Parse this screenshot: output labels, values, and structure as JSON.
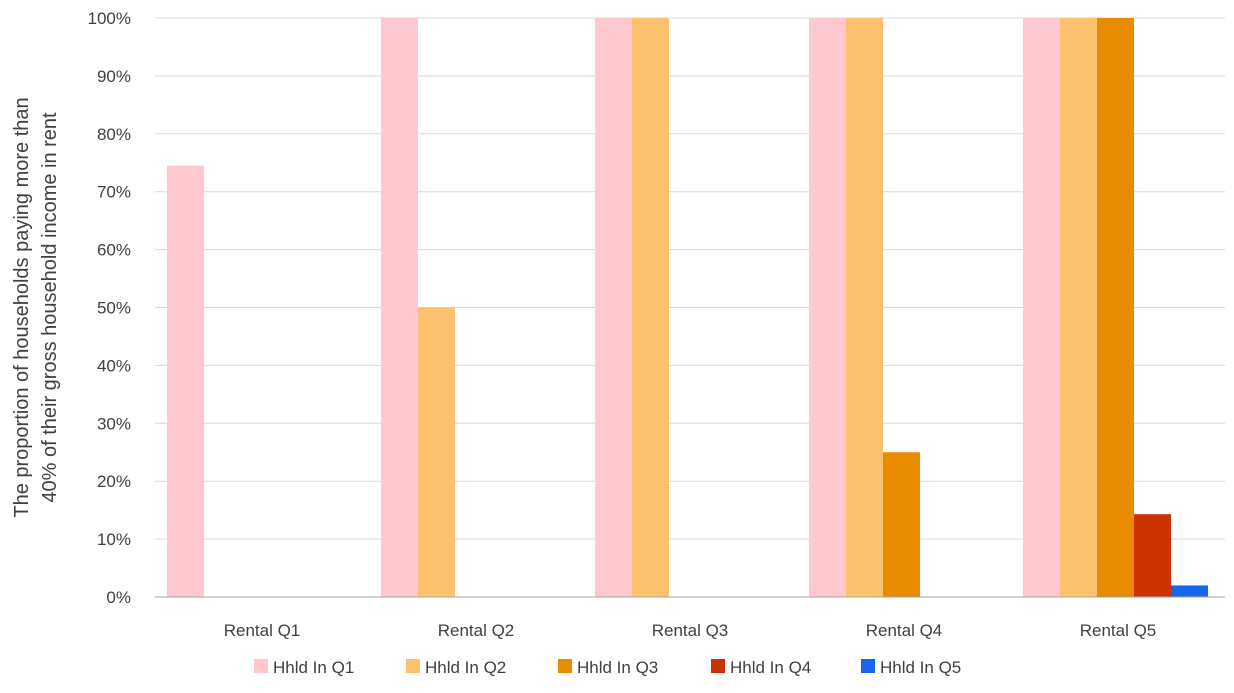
{
  "chart_data": {
    "type": "bar",
    "title": "",
    "xlabel": "",
    "ylabel_lines": [
      "The proportion of households paying more than",
      "40% of their gross household income in rent"
    ],
    "ylim": [
      0,
      100
    ],
    "y_ticks": [
      "0%",
      "10%",
      "20%",
      "30%",
      "40%",
      "50%",
      "60%",
      "70%",
      "80%",
      "90%",
      "100%"
    ],
    "grid": true,
    "legend_position": "bottom",
    "categories": [
      "Rental Q1",
      "Rental Q2",
      "Rental Q3",
      "Rental Q4",
      "Rental Q5"
    ],
    "series": [
      {
        "name": "Hhld In Q1",
        "color": "#ffc7ce",
        "values": [
          74.5,
          100,
          100,
          100,
          100
        ]
      },
      {
        "name": "Hhld In Q2",
        "color": "#fdc06c",
        "values": [
          0,
          50,
          100,
          100,
          100
        ]
      },
      {
        "name": "Hhld In Q3",
        "color": "#e98b00",
        "values": [
          0,
          0,
          0,
          25,
          100
        ]
      },
      {
        "name": "Hhld In Q4",
        "color": "#cc3300",
        "values": [
          0,
          0,
          0,
          0,
          14.3
        ]
      },
      {
        "name": "Hhld In Q5",
        "color": "#1766ef",
        "values": [
          0,
          0,
          0,
          0,
          2
        ]
      }
    ]
  }
}
